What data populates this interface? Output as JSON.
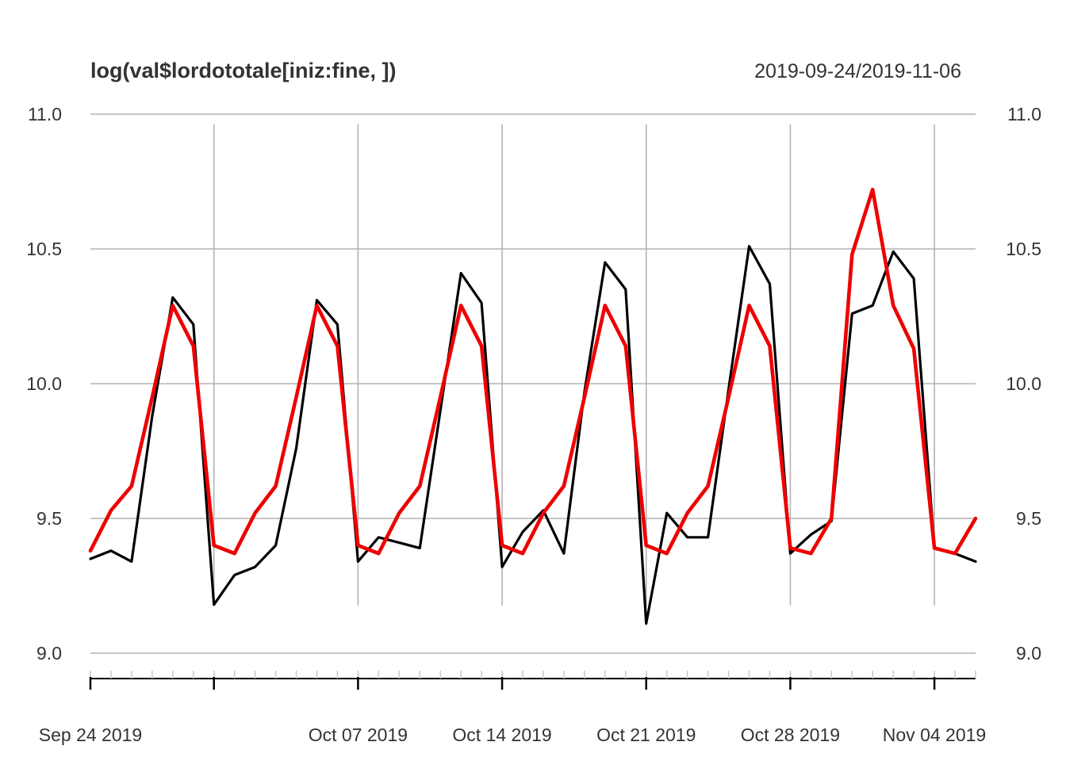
{
  "chart_data": {
    "type": "line",
    "title": "log(val$lordototale[iniz:fine, ])",
    "date_range": "2019-09-24/2019-11-06",
    "x_start": "2019-09-24",
    "x_end": "2019-11-06",
    "ylim": [
      9.0,
      11.0
    ],
    "y_ticks": [
      "9.0",
      "9.5",
      "10.0",
      "10.5",
      "11.0"
    ],
    "x_ticks": [
      {
        "date": "2019-09-24",
        "label": "Sep 24 2019"
      },
      {
        "date": "2019-09-30",
        "label": ""
      },
      {
        "date": "2019-10-07",
        "label": "Oct 07 2019"
      },
      {
        "date": "2019-10-14",
        "label": "Oct 14 2019"
      },
      {
        "date": "2019-10-21",
        "label": "Oct 21 2019"
      },
      {
        "date": "2019-10-28",
        "label": "Oct 28 2019"
      },
      {
        "date": "2019-11-04",
        "label": "Nov 04 2019"
      }
    ],
    "grid": true,
    "series": [
      {
        "color": "#000000",
        "values": [
          9.35,
          9.38,
          9.34,
          9.88,
          10.32,
          10.22,
          9.18,
          9.29,
          9.32,
          9.4,
          9.76,
          10.31,
          10.22,
          9.34,
          9.43,
          9.41,
          9.39,
          9.9,
          10.41,
          10.3,
          9.32,
          9.45,
          9.53,
          9.37,
          9.97,
          10.45,
          10.35,
          9.11,
          9.52,
          9.43,
          9.43,
          9.98,
          10.51,
          10.37,
          9.37,
          9.44,
          9.49,
          10.26,
          10.29,
          10.49,
          10.39,
          9.39,
          9.37,
          9.34
        ]
      },
      {
        "color": "#ee0000",
        "values": [
          9.38,
          9.53,
          9.62,
          9.95,
          10.29,
          10.14,
          9.4,
          9.37,
          9.52,
          9.62,
          9.95,
          10.29,
          10.14,
          9.4,
          9.37,
          9.52,
          9.62,
          9.95,
          10.29,
          10.14,
          9.4,
          9.37,
          9.52,
          9.62,
          9.95,
          10.29,
          10.14,
          9.4,
          9.37,
          9.52,
          9.62,
          9.95,
          10.29,
          10.14,
          9.39,
          9.37,
          9.5,
          10.48,
          10.72,
          10.29,
          10.13,
          9.39,
          9.37,
          9.5
        ]
      }
    ]
  }
}
